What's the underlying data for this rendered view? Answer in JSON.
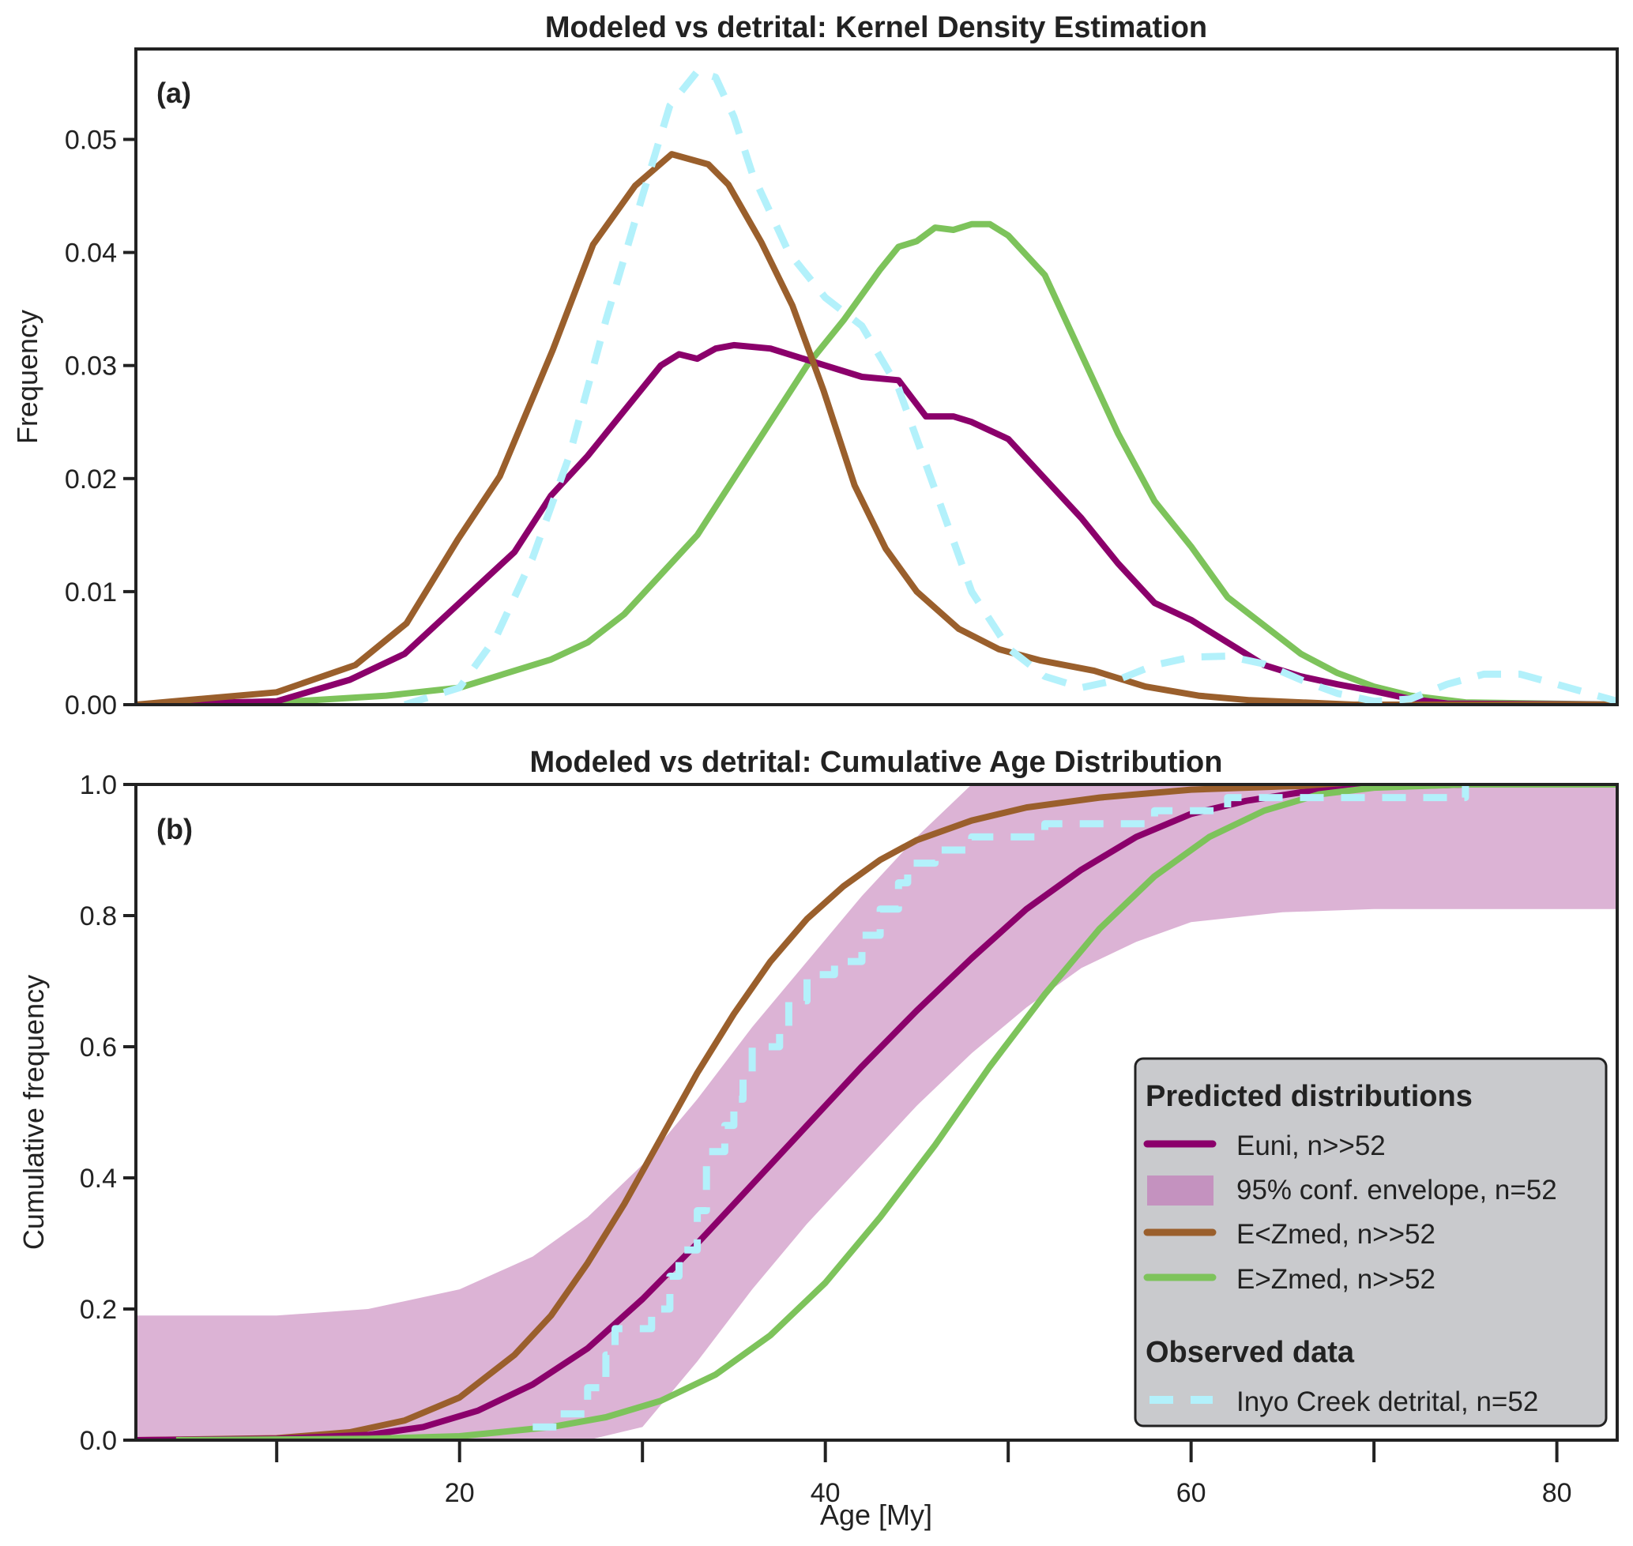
{
  "chart_data": [
    {
      "type": "line",
      "panel_label": "(a)",
      "title": "Modeled vs detrital: Kernel Density Estimation",
      "xlabel": "",
      "ylabel": "Frequency",
      "xlim": [
        2.3,
        83.3
      ],
      "ylim": [
        0,
        0.058
      ],
      "yticks": [
        0.0,
        0.01,
        0.02,
        0.03,
        0.04,
        0.05
      ],
      "ytick_labels": [
        "0.00",
        "0.01",
        "0.02",
        "0.03",
        "0.04",
        "0.05"
      ],
      "grid": false,
      "series": [
        {
          "name": "E<Zmed, n>>52",
          "color": "#9a5f2c",
          "style": "solid",
          "x": [
            2.3,
            10,
            14.3,
            17.1,
            19.9,
            22.2,
            25.1,
            27.3,
            29.6,
            31.6,
            33.6,
            34.7,
            36.5,
            38.2,
            39.9,
            41.6,
            43.3,
            45.0,
            47.3,
            49.5,
            51.8,
            54.7,
            57.5,
            60.4,
            63.2,
            68.9,
            83.3
          ],
          "y": [
            0,
            0.0011,
            0.0035,
            0.0072,
            0.0146,
            0.0202,
            0.0314,
            0.0407,
            0.0459,
            0.0487,
            0.0478,
            0.046,
            0.0409,
            0.0353,
            0.0278,
            0.0194,
            0.0138,
            0.01,
            0.0067,
            0.0049,
            0.0039,
            0.003,
            0.0016,
            0.0008,
            0.0004,
            0,
            0
          ]
        },
        {
          "name": "Euni, n>>52",
          "color": "#8b006b",
          "style": "solid",
          "x": [
            2.3,
            10,
            14,
            17,
            20,
            23,
            25,
            27,
            29,
            31,
            32,
            33,
            34,
            35,
            37,
            40,
            42,
            44,
            45.5,
            47,
            48,
            50,
            52,
            54,
            56,
            58,
            60,
            62,
            64,
            66,
            68,
            70,
            72,
            74,
            83.3
          ],
          "y": [
            0,
            0.0003,
            0.0022,
            0.0045,
            0.009,
            0.0135,
            0.0185,
            0.022,
            0.026,
            0.03,
            0.031,
            0.0306,
            0.0315,
            0.0318,
            0.0315,
            0.03,
            0.029,
            0.0287,
            0.0255,
            0.0255,
            0.025,
            0.0235,
            0.02,
            0.0165,
            0.0125,
            0.009,
            0.0075,
            0.0055,
            0.0035,
            0.0025,
            0.0018,
            0.0012,
            0.0005,
            0.0001,
            0
          ]
        },
        {
          "name": "E>Zmed, n>>52",
          "color": "#7dc35b",
          "style": "solid",
          "x": [
            2.3,
            10,
            16,
            20,
            23,
            25,
            27,
            29,
            31,
            33,
            35,
            37,
            39,
            41,
            43,
            44,
            45,
            46,
            47,
            48,
            49,
            50,
            52,
            54,
            56,
            58,
            60,
            62,
            64,
            66,
            68,
            70,
            72,
            75,
            83.3
          ],
          "y": [
            0,
            0.0002,
            0.0008,
            0.0015,
            0.003,
            0.004,
            0.0055,
            0.008,
            0.0115,
            0.015,
            0.02,
            0.025,
            0.03,
            0.034,
            0.0385,
            0.0405,
            0.041,
            0.0422,
            0.042,
            0.0425,
            0.0425,
            0.0415,
            0.038,
            0.031,
            0.024,
            0.018,
            0.014,
            0.0095,
            0.007,
            0.0045,
            0.0028,
            0.0016,
            0.0008,
            0.0002,
            0
          ]
        },
        {
          "name": "Inyo Creek detrital, n=52",
          "color": "#b3f1fb",
          "style": "dashed",
          "x": [
            17,
            20,
            22,
            24,
            26,
            28,
            30,
            31.5,
            33,
            34,
            35,
            36,
            38,
            40,
            42,
            44,
            46,
            48,
            50,
            52,
            54,
            56,
            58,
            60,
            62,
            64,
            66,
            68,
            70,
            72,
            74,
            76,
            78,
            80,
            83.3
          ],
          "y": [
            0,
            0.0015,
            0.006,
            0.013,
            0.022,
            0.034,
            0.045,
            0.053,
            0.056,
            0.0555,
            0.052,
            0.047,
            0.04,
            0.036,
            0.0335,
            0.028,
            0.019,
            0.01,
            0.005,
            0.0025,
            0.0015,
            0.0022,
            0.0035,
            0.0042,
            0.0043,
            0.0036,
            0.0022,
            0.001,
            0.0003,
            0.0005,
            0.0018,
            0.0027,
            0.0027,
            0.0018,
            0.0003
          ]
        }
      ]
    },
    {
      "type": "line",
      "panel_label": "(b)",
      "title": "Modeled vs detrital: Cumulative Age Distribution",
      "xlabel": "Age [My]",
      "ylabel": "Cumulative frequency",
      "xlim": [
        2.3,
        83.3
      ],
      "ylim": [
        0,
        1.0
      ],
      "xticks_major": [
        20,
        40,
        60,
        80
      ],
      "xtick_labels": [
        "20",
        "40",
        "60",
        "80"
      ],
      "xticks_minor": [
        10,
        30,
        50,
        70
      ],
      "yticks": [
        0.0,
        0.2,
        0.4,
        0.6,
        0.8,
        1.0
      ],
      "ytick_labels": [
        "0.0",
        "0.2",
        "0.4",
        "0.6",
        "0.8",
        "1.0"
      ],
      "grid": false,
      "envelope": {
        "name": "95% conf. envelope, n=52",
        "color": "#dcb3d5",
        "x": [
          2.3,
          10,
          15,
          20,
          24,
          27,
          30,
          33,
          36,
          39,
          42,
          45,
          48,
          51,
          54,
          57,
          60,
          65,
          70,
          75,
          83.3
        ],
        "lower": [
          0,
          0,
          0,
          0,
          0,
          0,
          0.02,
          0.12,
          0.23,
          0.33,
          0.42,
          0.51,
          0.59,
          0.66,
          0.72,
          0.76,
          0.79,
          0.805,
          0.81,
          0.81,
          0.81
        ],
        "upper": [
          0.19,
          0.19,
          0.2,
          0.23,
          0.28,
          0.34,
          0.42,
          0.52,
          0.63,
          0.73,
          0.83,
          0.92,
          1.0,
          1.0,
          1.0,
          1.0,
          1.0,
          1.0,
          1.0,
          1.0,
          1.0
        ]
      },
      "series": [
        {
          "name": "Euni, n>>52",
          "color": "#8b006b",
          "style": "solid",
          "x": [
            2.3,
            10,
            15,
            18,
            21,
            24,
            27,
            30,
            33,
            36,
            39,
            42,
            45,
            48,
            51,
            54,
            57,
            60,
            63,
            66,
            70,
            75,
            83.3
          ],
          "y": [
            0,
            0.002,
            0.008,
            0.02,
            0.045,
            0.085,
            0.14,
            0.215,
            0.3,
            0.39,
            0.48,
            0.57,
            0.655,
            0.735,
            0.81,
            0.87,
            0.92,
            0.955,
            0.975,
            0.988,
            0.996,
            1.0,
            1.0
          ]
        },
        {
          "name": "E<Zmed, n>>52",
          "color": "#9a5f2c",
          "style": "solid",
          "x": [
            2.3,
            10,
            14,
            17,
            20,
            23,
            25,
            27,
            29,
            31,
            33,
            35,
            37,
            39,
            41,
            43,
            45,
            48,
            51,
            55,
            60,
            65,
            70,
            83.3
          ],
          "y": [
            0,
            0.003,
            0.012,
            0.03,
            0.065,
            0.13,
            0.19,
            0.27,
            0.36,
            0.46,
            0.56,
            0.65,
            0.73,
            0.795,
            0.845,
            0.885,
            0.915,
            0.945,
            0.965,
            0.98,
            0.992,
            0.997,
            1.0,
            1.0
          ]
        },
        {
          "name": "E>Zmed, n>>52",
          "color": "#7dc35b",
          "style": "solid",
          "x": [
            4.5,
            15,
            20,
            25,
            28,
            31,
            34,
            37,
            40,
            43,
            46,
            49,
            52,
            55,
            58,
            61,
            64,
            67,
            70,
            75,
            83.3
          ],
          "y": [
            0,
            0.002,
            0.006,
            0.02,
            0.035,
            0.06,
            0.1,
            0.16,
            0.24,
            0.34,
            0.45,
            0.57,
            0.68,
            0.78,
            0.86,
            0.92,
            0.96,
            0.985,
            0.995,
            1.0,
            1.0
          ]
        },
        {
          "name": "Inyo Creek detrital, n=52",
          "color": "#b3f1fb",
          "style": "dashed-step",
          "x": [
            24,
            25.5,
            25.5,
            27,
            27,
            28,
            28,
            28.5,
            28.5,
            30.5,
            30.5,
            31.5,
            31.5,
            32,
            32,
            33,
            33,
            33.5,
            33.5,
            34.5,
            34.5,
            35,
            35,
            35.5,
            35.5,
            36,
            36,
            37.5,
            37.5,
            38,
            38,
            39,
            39,
            40.5,
            40.5,
            42,
            42,
            43,
            43,
            44,
            44,
            44.5,
            44.5,
            46,
            46,
            48,
            48,
            52,
            52,
            58,
            58,
            62,
            62,
            75,
            75
          ],
          "y": [
            0.02,
            0.02,
            0.04,
            0.04,
            0.08,
            0.08,
            0.13,
            0.13,
            0.17,
            0.17,
            0.2,
            0.2,
            0.25,
            0.25,
            0.29,
            0.29,
            0.35,
            0.35,
            0.44,
            0.44,
            0.48,
            0.48,
            0.52,
            0.52,
            0.56,
            0.56,
            0.6,
            0.6,
            0.62,
            0.62,
            0.67,
            0.67,
            0.71,
            0.71,
            0.73,
            0.73,
            0.77,
            0.77,
            0.81,
            0.81,
            0.85,
            0.85,
            0.88,
            0.88,
            0.9,
            0.9,
            0.92,
            0.92,
            0.94,
            0.94,
            0.96,
            0.96,
            0.98,
            0.98,
            1.0
          ]
        }
      ],
      "legend": {
        "position": "lower-right",
        "groups": [
          {
            "title": "Predicted distributions",
            "entries": [
              {
                "label": "Euni, n>>52",
                "kind": "line",
                "color": "#8b006b"
              },
              {
                "label": "95% conf. envelope, n=52",
                "kind": "patch",
                "color": "#c27fb9"
              },
              {
                "label": "E<Zmed, n>>52",
                "kind": "line",
                "color": "#9a5f2c"
              },
              {
                "label": "E>Zmed, n>>52",
                "kind": "line",
                "color": "#7dc35b"
              }
            ]
          },
          {
            "title": "Observed data",
            "entries": [
              {
                "label": "Inyo Creek detrital, n=52",
                "kind": "dashed",
                "color": "#b3f1fb"
              }
            ]
          }
        ]
      }
    }
  ]
}
